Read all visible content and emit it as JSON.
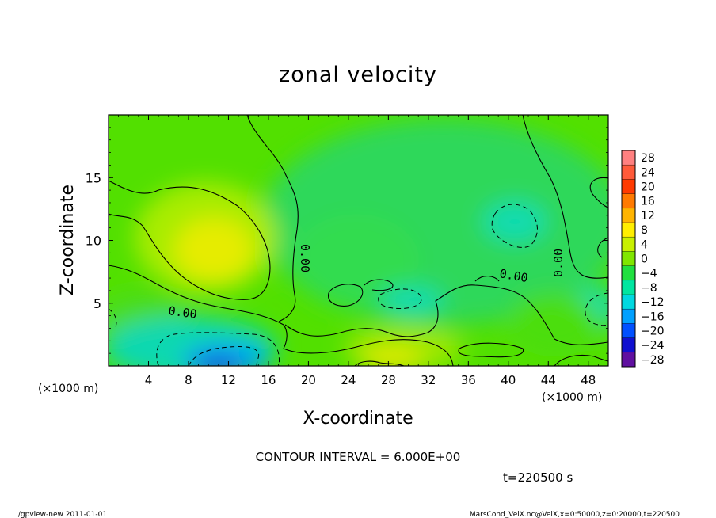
{
  "chart_data": {
    "type": "heatmap",
    "title": "zonal velocity",
    "xlabel": "X-coordinate",
    "ylabel": "Z-coordinate",
    "x_unit_label": "(×1000 m)",
    "y_unit_label": "(×1000 m)",
    "xlim": [
      0,
      50
    ],
    "ylim": [
      0,
      20
    ],
    "x_ticks": [
      4,
      8,
      12,
      16,
      20,
      24,
      28,
      32,
      36,
      40,
      44,
      48
    ],
    "y_ticks": [
      5,
      10,
      15
    ],
    "colorbar": {
      "levels": [
        28,
        24,
        20,
        16,
        12,
        8,
        4,
        0,
        -4,
        -8,
        -12,
        -16,
        -20,
        -24,
        -28
      ],
      "labels": [
        "28",
        "24",
        "20",
        "16",
        "12",
        "8",
        "4",
        "0",
        "−4",
        "−8",
        "−12",
        "−16",
        "−20",
        "−24",
        "−28"
      ],
      "colors": [
        "#ff8080",
        "#ff5a3a",
        "#ff3a00",
        "#ff7a00",
        "#ffb400",
        "#ffee00",
        "#c8f000",
        "#80e600",
        "#20e040",
        "#00e6a0",
        "#00d8e0",
        "#00a0ff",
        "#0050ff",
        "#1010d0",
        "#6010a0"
      ]
    },
    "contour_labels": [
      "0.00",
      "0.00",
      "0.00",
      "0.00"
    ],
    "contour_interval_text": "CONTOUR INTERVAL = 6.000E+00",
    "time_text": "t=220500 s"
  },
  "footer": {
    "left": "./gpview-new  2011-01-01",
    "right": "MarsCond_VelX.nc@VelX,x=0:50000,z=0:20000,t=220500"
  }
}
